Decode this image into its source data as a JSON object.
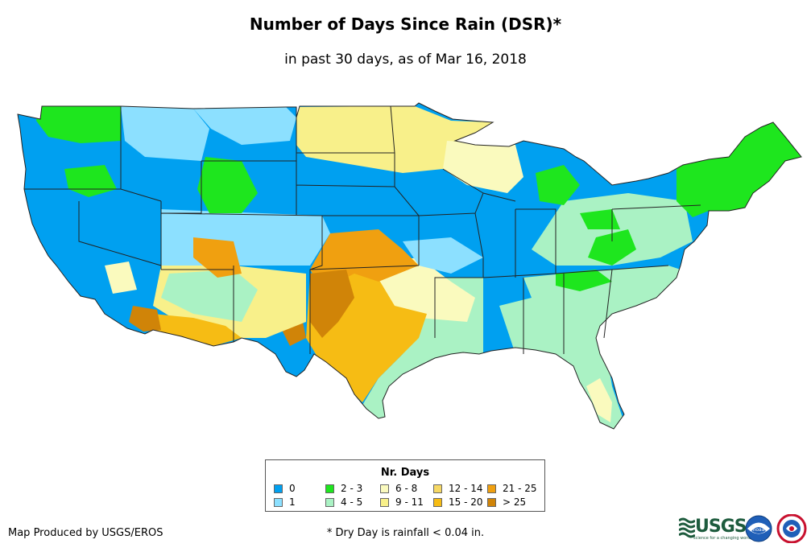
{
  "title": "Number of Days Since Rain (DSR)*",
  "subtitle": "in past 30 days, as of Mar 16, 2018",
  "legend": {
    "title": "Nr. Days",
    "items": [
      {
        "label": "0",
        "color": "#00a0f0"
      },
      {
        "label": "1",
        "color": "#8ce0ff"
      },
      {
        "label": "2 - 3",
        "color": "#1ee61e"
      },
      {
        "label": "4 - 5",
        "color": "#aaf2c4"
      },
      {
        "label": "6 - 8",
        "color": "#fafabe"
      },
      {
        "label": "9 - 11",
        "color": "#f8f08a"
      },
      {
        "label": "12 - 14",
        "color": "#f6d864"
      },
      {
        "label": "15 - 20",
        "color": "#f6bc14"
      },
      {
        "label": "21 - 25",
        "color": "#f0a010"
      },
      {
        "label": "> 25",
        "color": "#d08408"
      }
    ]
  },
  "credit": "Map Produced by USGS/EROS",
  "footnote": "* Dry Day is rainfall < 0.04 in.",
  "logos": {
    "usgs": "USGS",
    "usgs_tagline": "science for a changing world",
    "noaa_icon": "noaa-logo-icon",
    "nws_icon": "nws-logo-icon"
  }
}
